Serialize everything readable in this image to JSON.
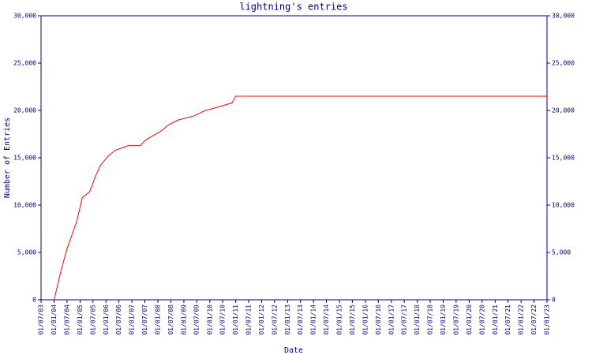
{
  "chart_data": {
    "type": "line",
    "title": "lightning's entries",
    "x_label": "Date",
    "y_label": "Number of Entries",
    "x": [
      "2004-01-01",
      "2004-04-01",
      "2004-07-01",
      "2004-09-01",
      "2004-11-15",
      "2005-01-01",
      "2005-02-01",
      "2005-05-15",
      "2005-08-15",
      "2005-10-15",
      "2006-02-01",
      "2006-05-15",
      "2006-11-15",
      "2007-05-01",
      "2007-07-01",
      "2007-10-15",
      "2008-03-01",
      "2008-06-01",
      "2008-10-15",
      "2009-05-15",
      "2009-11-01",
      "2010-02-15",
      "2010-11-10",
      "2011-01-01",
      "2023-01-01"
    ],
    "series": [
      {
        "name": "entries",
        "color": "#ff0000",
        "values": [
          0,
          2900,
          5400,
          6700,
          8300,
          9800,
          10800,
          11400,
          13200,
          14200,
          15200,
          15800,
          16300,
          16300,
          16800,
          17300,
          17900,
          18500,
          19000,
          19400,
          20000,
          20200,
          20800,
          21500,
          21500
        ]
      }
    ],
    "xlim": [
      "2003-07-01",
      "2023-01-01"
    ],
    "xticks": [
      {
        "value": "2003-07-01",
        "label": "01/07/03"
      },
      {
        "value": "2004-01-01",
        "label": "01/01/04"
      },
      {
        "value": "2004-07-01",
        "label": "01/07/04"
      },
      {
        "value": "2005-01-01",
        "label": "01/01/05"
      },
      {
        "value": "2005-07-01",
        "label": "01/07/05"
      },
      {
        "value": "2006-01-01",
        "label": "01/01/06"
      },
      {
        "value": "2006-07-01",
        "label": "01/07/06"
      },
      {
        "value": "2007-01-01",
        "label": "01/01/07"
      },
      {
        "value": "2007-07-01",
        "label": "01/07/07"
      },
      {
        "value": "2008-01-01",
        "label": "01/01/08"
      },
      {
        "value": "2008-07-01",
        "label": "01/07/08"
      },
      {
        "value": "2009-01-01",
        "label": "01/01/09"
      },
      {
        "value": "2009-07-01",
        "label": "01/07/09"
      },
      {
        "value": "2010-01-01",
        "label": "01/01/10"
      },
      {
        "value": "2010-07-01",
        "label": "01/07/10"
      },
      {
        "value": "2011-01-01",
        "label": "01/01/11"
      },
      {
        "value": "2011-07-01",
        "label": "01/07/11"
      },
      {
        "value": "2012-01-01",
        "label": "01/01/12"
      },
      {
        "value": "2012-07-01",
        "label": "01/07/12"
      },
      {
        "value": "2013-01-01",
        "label": "01/01/13"
      },
      {
        "value": "2013-07-01",
        "label": "01/07/13"
      },
      {
        "value": "2014-01-01",
        "label": "01/01/14"
      },
      {
        "value": "2014-07-01",
        "label": "01/07/14"
      },
      {
        "value": "2015-01-01",
        "label": "01/01/15"
      },
      {
        "value": "2015-07-01",
        "label": "01/07/15"
      },
      {
        "value": "2016-01-01",
        "label": "01/01/16"
      },
      {
        "value": "2016-07-01",
        "label": "01/07/16"
      },
      {
        "value": "2017-01-01",
        "label": "01/01/17"
      },
      {
        "value": "2017-07-01",
        "label": "01/07/17"
      },
      {
        "value": "2018-01-01",
        "label": "01/01/18"
      },
      {
        "value": "2018-07-01",
        "label": "01/07/18"
      },
      {
        "value": "2019-01-01",
        "label": "01/01/19"
      },
      {
        "value": "2019-07-01",
        "label": "01/07/19"
      },
      {
        "value": "2020-01-01",
        "label": "01/01/20"
      },
      {
        "value": "2020-07-01",
        "label": "01/07/20"
      },
      {
        "value": "2021-01-01",
        "label": "01/01/21"
      },
      {
        "value": "2021-07-01",
        "label": "01/07/21"
      },
      {
        "value": "2022-01-01",
        "label": "01/01/22"
      },
      {
        "value": "2022-07-01",
        "label": "01/07/22"
      },
      {
        "value": "2023-01-01",
        "label": "01/01/23"
      }
    ],
    "ylim": [
      0,
      30000
    ],
    "yticks": [
      0,
      {
        "value": 5000,
        "label": "5,000"
      },
      {
        "value": 10000,
        "label": "10,000"
      },
      {
        "value": 15000,
        "label": "15,000"
      },
      {
        "value": 20000,
        "label": "20,000"
      },
      {
        "value": 25000,
        "label": "25,000"
      },
      {
        "value": 30000,
        "label": "30,000"
      }
    ],
    "y2lim": [
      0,
      30000
    ],
    "y2ticks": [
      0,
      {
        "value": 5000,
        "label": "5,000"
      },
      {
        "value": 10000,
        "label": "10,000"
      },
      {
        "value": 15000,
        "label": "15,000"
      },
      {
        "value": 20000,
        "label": "20,000"
      },
      {
        "value": 25000,
        "label": "25,000"
      },
      {
        "value": 30000,
        "label": "30,000"
      }
    ],
    "axis_color": "#000080"
  }
}
